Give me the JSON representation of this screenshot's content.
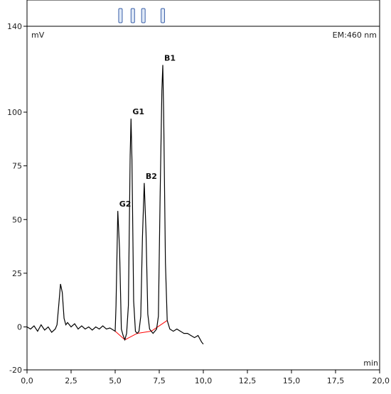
{
  "chart_data": {
    "type": "line",
    "ylabel": "mV",
    "xlabel": "min",
    "detector_label": "EM:460 nm",
    "xlim": [
      0,
      20
    ],
    "ylim": [
      -20,
      140
    ],
    "x_ticks": [
      "0,0",
      "2,5",
      "5,0",
      "7,5",
      "10,0",
      "12,5",
      "15,0",
      "17,5",
      "20,0"
    ],
    "y_ticks": [
      "-20",
      "0",
      "25",
      "50",
      "75",
      "100",
      "140"
    ],
    "event_markers": [
      5.3,
      6.0,
      6.6,
      7.7
    ],
    "peaks": [
      {
        "label": "G2",
        "x": 5.15,
        "y": 54
      },
      {
        "label": "G1",
        "x": 5.9,
        "y": 97
      },
      {
        "label": "B2",
        "x": 6.65,
        "y": 67
      },
      {
        "label": "B1",
        "x": 7.7,
        "y": 122
      }
    ],
    "series": [
      {
        "line_color": "#000000",
        "baseline_color": "#ff0000",
        "x": [
          0.0,
          0.2,
          0.4,
          0.6,
          0.8,
          1.0,
          1.2,
          1.4,
          1.6,
          1.7,
          1.8,
          1.9,
          2.0,
          2.1,
          2.2,
          2.3,
          2.5,
          2.7,
          2.9,
          3.1,
          3.3,
          3.5,
          3.7,
          3.9,
          4.1,
          4.3,
          4.5,
          4.7,
          4.9,
          5.0,
          5.05,
          5.15,
          5.25,
          5.35,
          5.45,
          5.55,
          5.65,
          5.75,
          5.85,
          5.9,
          5.95,
          6.05,
          6.15,
          6.25,
          6.35,
          6.45,
          6.55,
          6.65,
          6.75,
          6.85,
          6.95,
          7.05,
          7.15,
          7.25,
          7.35,
          7.45,
          7.55,
          7.65,
          7.7,
          7.75,
          7.85,
          7.95,
          8.1,
          8.3,
          8.5,
          8.7,
          8.9,
          9.1,
          9.3,
          9.5,
          9.7,
          9.9,
          10.0
        ],
        "y": [
          0,
          -1,
          0.5,
          -2,
          1,
          -1.5,
          0,
          -2.5,
          -1,
          1,
          10,
          20,
          16,
          4,
          1,
          2,
          0,
          1.5,
          -1,
          0.5,
          -1,
          0,
          -1.5,
          0,
          -1,
          0.5,
          -1,
          -0.5,
          -1.5,
          -2,
          10,
          54,
          36,
          -1,
          -4,
          -6,
          -3,
          10,
          80,
          97,
          78,
          12,
          -2,
          -3,
          -2,
          5,
          42,
          67,
          44,
          6,
          -1,
          -2,
          -3,
          -2,
          -1,
          5,
          60,
          110,
          122,
          100,
          30,
          3,
          -1,
          -2,
          -1,
          -2,
          -3,
          -3,
          -4,
          -5,
          -4,
          -7,
          -8
        ]
      }
    ]
  }
}
